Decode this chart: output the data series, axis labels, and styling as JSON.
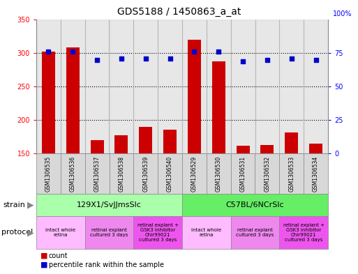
{
  "title": "GDS5188 / 1450863_a_at",
  "samples": [
    "GSM1306535",
    "GSM1306536",
    "GSM1306537",
    "GSM1306538",
    "GSM1306539",
    "GSM1306540",
    "GSM1306529",
    "GSM1306530",
    "GSM1306531",
    "GSM1306532",
    "GSM1306533",
    "GSM1306534"
  ],
  "counts": [
    302,
    308,
    170,
    177,
    190,
    185,
    320,
    288,
    161,
    162,
    181,
    165
  ],
  "percentiles": [
    76,
    76,
    70,
    71,
    71,
    71,
    76,
    76,
    69,
    70,
    71,
    70
  ],
  "ylim_left": [
    150,
    350
  ],
  "ylim_right": [
    0,
    100
  ],
  "yticks_left": [
    150,
    200,
    250,
    300,
    350
  ],
  "yticks_right": [
    0,
    25,
    50,
    75
  ],
  "bar_color": "#cc0000",
  "dot_color": "#0000cc",
  "bg_color": "#ffffff",
  "strain_groups": [
    {
      "label": "129X1/SvJJmsSlc",
      "start": 0,
      "end": 6,
      "color": "#aaffaa"
    },
    {
      "label": "C57BL/6NCrSlc",
      "start": 6,
      "end": 12,
      "color": "#66ee66"
    }
  ],
  "protocol_groups": [
    {
      "label": "intact whole\nretina",
      "start": 0,
      "end": 2,
      "color": "#ffbbff"
    },
    {
      "label": "retinal explant\ncultured 3 days",
      "start": 2,
      "end": 4,
      "color": "#ee88ee"
    },
    {
      "label": "retinal explant +\nGSK3 inhibitor\nChir99021\ncultured 3 days",
      "start": 4,
      "end": 6,
      "color": "#ee55ee"
    },
    {
      "label": "intact whole\nretina",
      "start": 6,
      "end": 8,
      "color": "#ffbbff"
    },
    {
      "label": "retinal explant\ncultured 3 days",
      "start": 8,
      "end": 10,
      "color": "#ee88ee"
    },
    {
      "label": "retinal explant +\nGSK3 inhibitor\nChir99021\ncultured 3 days",
      "start": 10,
      "end": 12,
      "color": "#ee55ee"
    }
  ],
  "strain_label": "strain",
  "protocol_label": "protocol",
  "legend_count_label": "count",
  "legend_percentile_label": "percentile rank within the sample",
  "figsize": [
    5.13,
    3.93
  ],
  "dpi": 100
}
